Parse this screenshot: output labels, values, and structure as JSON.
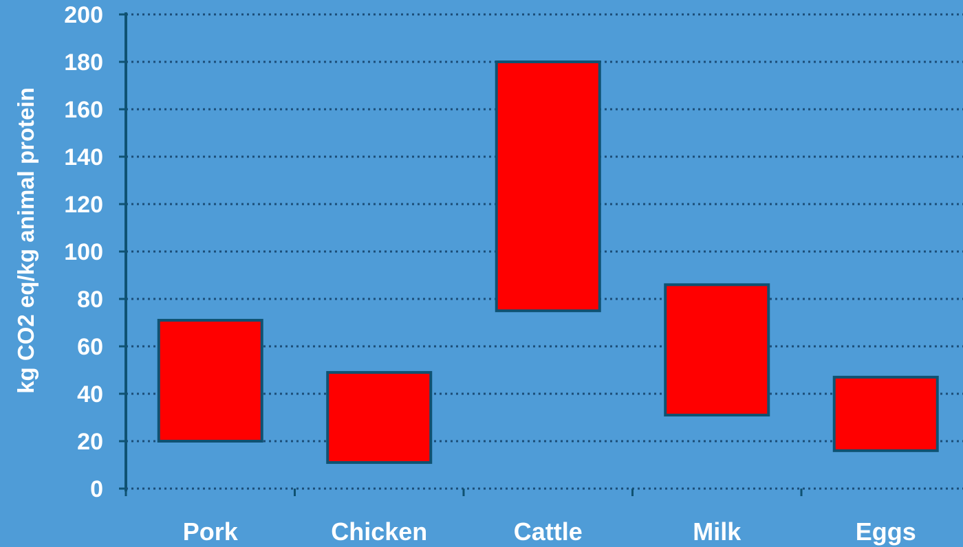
{
  "chart_data": {
    "type": "bar",
    "subtype": "floating-range",
    "categories": [
      "Pork",
      "Chicken",
      "Cattle",
      "Milk",
      "Eggs"
    ],
    "ranges": [
      [
        20,
        71
      ],
      [
        11,
        49
      ],
      [
        75,
        180
      ],
      [
        31,
        86
      ],
      [
        16,
        47
      ]
    ],
    "title": "",
    "xlabel": "",
    "ylabel": "kg CO2 eq/kg animal protein",
    "ylim": [
      0,
      200
    ],
    "yticks": [
      0,
      20,
      40,
      60,
      80,
      100,
      120,
      140,
      160,
      180,
      200
    ],
    "grid": "dotted horizontal",
    "legend": "none",
    "colors": {
      "background": "#4f9cd7",
      "bar_fill": "#ff0000",
      "bar_edge": "#0f5272",
      "axis": "#0f5272",
      "grid": "#1b4d77",
      "text": "#ffffff"
    }
  }
}
